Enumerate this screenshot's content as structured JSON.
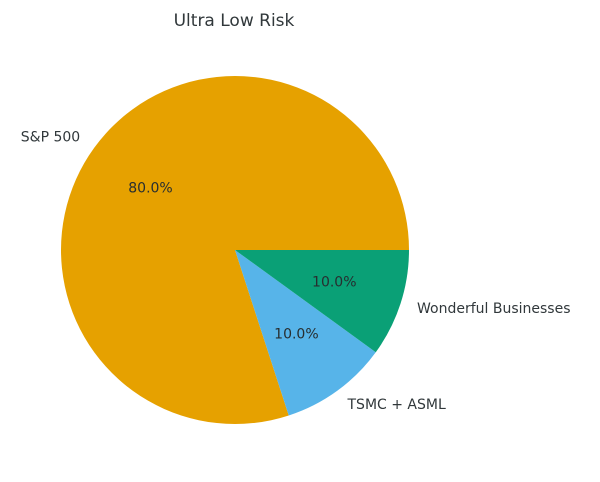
{
  "chart_data": {
    "type": "pie",
    "title": "Ultra Low Risk",
    "slices": [
      {
        "label": "S&P 500",
        "value": 80.0,
        "pct_label": "80.0%",
        "color": "#E6A100"
      },
      {
        "label": "TSMC + ASML",
        "value": 10.0,
        "pct_label": "10.0%",
        "color": "#57B4E9"
      },
      {
        "label": "Wonderful Businesses",
        "value": 10.0,
        "pct_label": "10.0%",
        "color": "#0AA076"
      }
    ],
    "start_angle_deg": 0,
    "direction": "counterclockwise",
    "label_distance": 1.1,
    "pct_distance": 0.6,
    "legend": "none",
    "background_color": "#FFFFFF",
    "text_color": "#31383B"
  }
}
